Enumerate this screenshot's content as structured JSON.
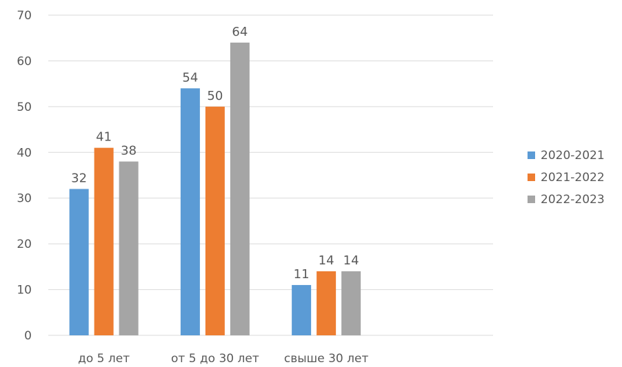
{
  "chart_data": {
    "type": "bar",
    "categories": [
      "до 5 лет",
      "от 5 до 30 лет",
      "свыше 30 лет"
    ],
    "series": [
      {
        "name": "2020-2021",
        "values": [
          32,
          54,
          11
        ],
        "color": "#5b9bd5"
      },
      {
        "name": "2021-2022",
        "values": [
          41,
          50,
          14
        ],
        "color": "#ed7d31"
      },
      {
        "name": "2022-2023",
        "values": [
          38,
          64,
          14
        ],
        "color": "#a5a5a5"
      }
    ],
    "ylim": [
      0,
      70
    ],
    "yticks": [
      0,
      10,
      20,
      30,
      40,
      50,
      60,
      70
    ],
    "grid": true,
    "legend": "right",
    "data_labels": true
  }
}
